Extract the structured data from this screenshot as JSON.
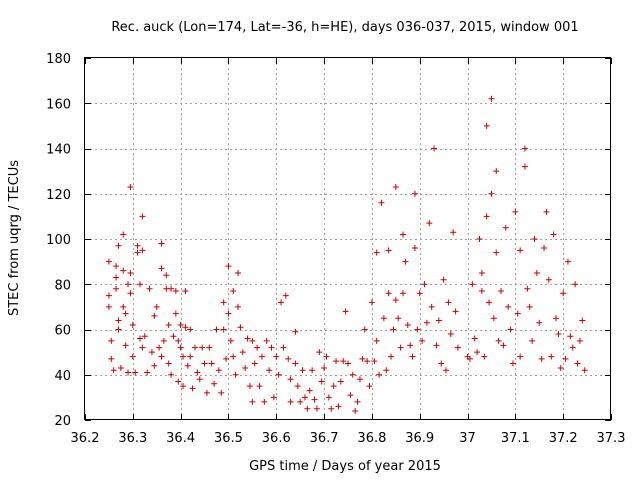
{
  "chart_data": {
    "type": "scatter",
    "title": "Rec. auck (Lon=174, Lat=-36, h=HE), days 036-037, 2015, window 001",
    "xlabel": "GPS time / Days of year 2015",
    "ylabel": "STEC from uqrg / TECUs",
    "xlim": [
      36.2,
      37.3
    ],
    "ylim": [
      20,
      180
    ],
    "x_ticks": [
      36.2,
      36.3,
      36.4,
      36.5,
      36.6,
      36.7,
      36.8,
      36.9,
      37.0,
      37.1,
      37.2,
      37.3
    ],
    "x_tick_labels": [
      "36.2",
      "36.3",
      "36.4",
      "36.5",
      "36.6",
      "36.7",
      "36.8",
      "36.9",
      "37",
      "37.1",
      "37.2",
      "37.3"
    ],
    "y_ticks": [
      20,
      40,
      60,
      80,
      100,
      120,
      140,
      160,
      180
    ],
    "y_tick_labels": [
      "20",
      "40",
      "60",
      "80",
      "100",
      "120",
      "140",
      "160",
      "180"
    ],
    "grid": true,
    "marker": "+",
    "color": "#cc0000",
    "series": [
      {
        "name": "STEC",
        "points": [
          [
            36.25,
            90
          ],
          [
            36.25,
            75
          ],
          [
            36.25,
            70
          ],
          [
            36.255,
            55
          ],
          [
            36.255,
            47
          ],
          [
            36.26,
            42
          ],
          [
            36.265,
            88
          ],
          [
            36.265,
            83
          ],
          [
            36.265,
            78
          ],
          [
            36.27,
            97
          ],
          [
            36.27,
            64
          ],
          [
            36.27,
            60
          ],
          [
            36.275,
            43
          ],
          [
            36.28,
            102
          ],
          [
            36.28,
            86
          ],
          [
            36.28,
            70
          ],
          [
            36.285,
            67
          ],
          [
            36.285,
            53
          ],
          [
            36.29,
            41
          ],
          [
            36.29,
            80
          ],
          [
            36.295,
            123
          ],
          [
            36.295,
            85
          ],
          [
            36.295,
            76
          ],
          [
            36.3,
            62
          ],
          [
            36.3,
            48
          ],
          [
            36.305,
            41
          ],
          [
            36.31,
            97
          ],
          [
            36.31,
            94
          ],
          [
            36.315,
            80
          ],
          [
            36.315,
            56
          ],
          [
            36.32,
            110
          ],
          [
            36.32,
            95
          ],
          [
            36.32,
            52
          ],
          [
            36.325,
            57
          ],
          [
            36.33,
            41
          ],
          [
            36.335,
            78
          ],
          [
            36.34,
            50
          ],
          [
            36.345,
            66
          ],
          [
            36.345,
            44
          ],
          [
            36.35,
            70
          ],
          [
            36.355,
            52
          ],
          [
            36.36,
            98
          ],
          [
            36.36,
            87
          ],
          [
            36.36,
            48
          ],
          [
            36.365,
            55
          ],
          [
            36.37,
            84
          ],
          [
            36.37,
            78
          ],
          [
            36.375,
            62
          ],
          [
            36.375,
            45
          ],
          [
            36.38,
            78
          ],
          [
            36.38,
            40
          ],
          [
            36.385,
            57
          ],
          [
            36.39,
            77
          ],
          [
            36.39,
            67
          ],
          [
            36.395,
            55
          ],
          [
            36.395,
            37
          ],
          [
            36.4,
            62
          ],
          [
            36.4,
            52
          ],
          [
            36.405,
            48
          ],
          [
            36.405,
            35
          ],
          [
            36.41,
            77
          ],
          [
            36.41,
            61
          ],
          [
            36.415,
            44
          ],
          [
            36.42,
            60
          ],
          [
            36.42,
            48
          ],
          [
            36.425,
            34
          ],
          [
            36.43,
            52
          ],
          [
            36.435,
            41
          ],
          [
            36.44,
            38
          ],
          [
            36.445,
            52
          ],
          [
            36.45,
            45
          ],
          [
            36.455,
            32
          ],
          [
            36.46,
            52
          ],
          [
            36.465,
            45
          ],
          [
            36.47,
            36
          ],
          [
            36.475,
            60
          ],
          [
            36.48,
            42
          ],
          [
            36.485,
            32
          ],
          [
            36.49,
            72
          ],
          [
            36.49,
            60
          ],
          [
            36.495,
            47
          ],
          [
            36.5,
            88
          ],
          [
            36.5,
            67
          ],
          [
            36.505,
            55
          ],
          [
            36.51,
            77
          ],
          [
            36.51,
            48
          ],
          [
            36.515,
            40
          ],
          [
            36.52,
            85
          ],
          [
            36.52,
            70
          ],
          [
            36.525,
            61
          ],
          [
            36.53,
            50
          ],
          [
            36.535,
            43
          ],
          [
            36.54,
            56
          ],
          [
            36.545,
            35
          ],
          [
            36.55,
            55
          ],
          [
            36.55,
            28
          ],
          [
            36.555,
            45
          ],
          [
            36.56,
            52
          ],
          [
            36.565,
            35
          ],
          [
            36.57,
            48
          ],
          [
            36.575,
            28
          ],
          [
            36.58,
            55
          ],
          [
            36.585,
            42
          ],
          [
            36.59,
            52
          ],
          [
            36.595,
            30
          ],
          [
            36.6,
            48
          ],
          [
            36.605,
            40
          ],
          [
            36.61,
            72
          ],
          [
            36.615,
            52
          ],
          [
            36.62,
            75
          ],
          [
            36.625,
            47
          ],
          [
            36.63,
            38
          ],
          [
            36.63,
            28
          ],
          [
            36.64,
            59
          ],
          [
            36.64,
            45
          ],
          [
            36.645,
            35
          ],
          [
            36.65,
            28
          ],
          [
            36.655,
            42
          ],
          [
            36.66,
            30
          ],
          [
            36.665,
            25
          ],
          [
            36.67,
            33
          ],
          [
            36.675,
            42
          ],
          [
            36.68,
            29
          ],
          [
            36.685,
            25
          ],
          [
            36.69,
            50
          ],
          [
            36.695,
            37
          ],
          [
            36.7,
            43
          ],
          [
            36.705,
            48
          ],
          [
            36.71,
            30
          ],
          [
            36.715,
            25
          ],
          [
            36.72,
            35
          ],
          [
            36.725,
            46
          ],
          [
            36.73,
            26
          ],
          [
            36.735,
            37
          ],
          [
            36.74,
            46
          ],
          [
            36.745,
            68
          ],
          [
            36.75,
            45
          ],
          [
            36.755,
            31
          ],
          [
            36.76,
            40
          ],
          [
            36.765,
            24
          ],
          [
            36.77,
            28
          ],
          [
            36.775,
            38
          ],
          [
            36.78,
            47
          ],
          [
            36.785,
            60
          ],
          [
            36.79,
            46
          ],
          [
            36.795,
            35
          ],
          [
            36.8,
            72
          ],
          [
            36.805,
            46
          ],
          [
            36.81,
            94
          ],
          [
            36.81,
            55
          ],
          [
            36.815,
            40
          ],
          [
            36.82,
            116
          ],
          [
            36.825,
            65
          ],
          [
            36.83,
            42
          ],
          [
            36.835,
            95
          ],
          [
            36.835,
            76
          ],
          [
            36.84,
            48
          ],
          [
            36.845,
            60
          ],
          [
            36.85,
            123
          ],
          [
            36.85,
            73
          ],
          [
            36.855,
            65
          ],
          [
            36.86,
            52
          ],
          [
            36.865,
            102
          ],
          [
            36.865,
            76
          ],
          [
            36.87,
            90
          ],
          [
            36.875,
            62
          ],
          [
            36.88,
            53
          ],
          [
            36.885,
            48
          ],
          [
            36.89,
            120
          ],
          [
            36.89,
            96
          ],
          [
            36.895,
            60
          ],
          [
            36.9,
            76
          ],
          [
            36.905,
            55
          ],
          [
            36.91,
            80
          ],
          [
            36.915,
            63
          ],
          [
            36.92,
            107
          ],
          [
            36.925,
            70
          ],
          [
            36.93,
            140
          ],
          [
            36.935,
            53
          ],
          [
            36.94,
            64
          ],
          [
            36.945,
            45
          ],
          [
            36.95,
            82
          ],
          [
            36.955,
            42
          ],
          [
            36.96,
            72
          ],
          [
            36.965,
            58
          ],
          [
            36.97,
            103
          ],
          [
            36.975,
            68
          ],
          [
            36.98,
            52
          ],
          [
            37.0,
            48
          ],
          [
            37.005,
            47
          ],
          [
            37.01,
            80
          ],
          [
            37.015,
            56
          ],
          [
            37.02,
            50
          ],
          [
            37.025,
            100
          ],
          [
            37.03,
            85
          ],
          [
            37.03,
            77
          ],
          [
            37.035,
            48
          ],
          [
            37.04,
            150
          ],
          [
            37.04,
            110
          ],
          [
            37.045,
            72
          ],
          [
            37.05,
            162
          ],
          [
            37.05,
            120
          ],
          [
            37.055,
            65
          ],
          [
            37.06,
            130
          ],
          [
            37.06,
            94
          ],
          [
            37.065,
            55
          ],
          [
            37.07,
            77
          ],
          [
            37.075,
            53
          ],
          [
            37.08,
            105
          ],
          [
            37.085,
            70
          ],
          [
            37.09,
            60
          ],
          [
            37.095,
            45
          ],
          [
            37.1,
            112
          ],
          [
            37.105,
            67
          ],
          [
            37.11,
            95
          ],
          [
            37.11,
            48
          ],
          [
            37.12,
            140
          ],
          [
            37.12,
            132
          ],
          [
            37.125,
            78
          ],
          [
            37.13,
            70
          ],
          [
            37.135,
            55
          ],
          [
            37.14,
            100
          ],
          [
            37.145,
            85
          ],
          [
            37.15,
            63
          ],
          [
            37.155,
            47
          ],
          [
            37.16,
            96
          ],
          [
            37.165,
            112
          ],
          [
            37.17,
            82
          ],
          [
            37.175,
            48
          ],
          [
            37.18,
            102
          ],
          [
            37.185,
            65
          ],
          [
            37.19,
            58
          ],
          [
            37.195,
            43
          ],
          [
            37.2,
            76
          ],
          [
            37.205,
            47
          ],
          [
            37.21,
            90
          ],
          [
            37.215,
            57
          ],
          [
            37.22,
            52
          ],
          [
            37.225,
            80
          ],
          [
            37.23,
            45
          ],
          [
            37.235,
            55
          ],
          [
            37.24,
            64
          ],
          [
            37.245,
            42
          ]
        ]
      }
    ]
  }
}
